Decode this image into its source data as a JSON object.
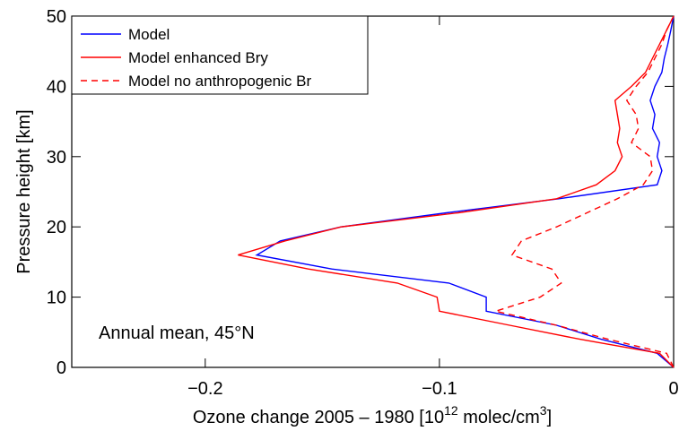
{
  "chart_data": {
    "type": "line",
    "ylabel": "Pressure height [km]",
    "xlabel": [
      "Ozone change 2005 – 1980 [10",
      "12",
      " molec/cm",
      "3",
      "]"
    ],
    "annotation": "Annual mean, 45°N",
    "x": [
      0,
      2,
      4,
      6,
      8,
      10,
      12,
      14,
      16,
      18,
      20,
      22,
      24,
      26,
      28,
      30,
      32,
      34,
      36,
      38,
      40,
      42,
      44,
      46,
      48,
      50
    ],
    "series": [
      {
        "name": "Model",
        "color": "#0000ff",
        "dash": false,
        "values": [
          0,
          -0.007,
          -0.031,
          -0.05,
          -0.08,
          -0.08,
          -0.096,
          -0.146,
          -0.178,
          -0.168,
          -0.142,
          -0.097,
          -0.049,
          -0.007,
          -0.005,
          -0.007,
          -0.006,
          -0.009,
          -0.008,
          -0.01,
          -0.008,
          -0.005,
          -0.004,
          -0.0025,
          -0.0012,
          0
        ]
      },
      {
        "name": "Model enhanced Bry",
        "color": "#ff0000",
        "dash": false,
        "values": [
          0,
          -0.006,
          -0.04,
          -0.07,
          -0.1,
          -0.101,
          -0.118,
          -0.156,
          -0.186,
          -0.166,
          -0.142,
          -0.092,
          -0.05,
          -0.033,
          -0.025,
          -0.022,
          -0.024,
          -0.023,
          -0.024,
          -0.025,
          -0.018,
          -0.012,
          -0.009,
          -0.006,
          -0.003,
          0
        ]
      },
      {
        "name": "Model no anthropogenic Br",
        "color": "#ff0000",
        "dash": true,
        "values": [
          0,
          -0.003,
          -0.028,
          -0.05,
          -0.076,
          -0.057,
          -0.048,
          -0.052,
          -0.069,
          -0.065,
          -0.05,
          -0.037,
          -0.024,
          -0.013,
          -0.009,
          -0.01,
          -0.018,
          -0.015,
          -0.016,
          -0.02,
          -0.016,
          -0.011,
          -0.008,
          -0.005,
          -0.003,
          0
        ]
      }
    ],
    "xlim": [
      -0.257,
      0
    ],
    "xticks": [
      {
        "value": -0.2,
        "label": "−0.2"
      },
      {
        "value": -0.1,
        "label": "−0.1"
      },
      0
    ],
    "ylim": [
      0,
      50
    ],
    "yticks": [
      0,
      10,
      20,
      30,
      40,
      50
    ],
    "legend": "upper left"
  }
}
